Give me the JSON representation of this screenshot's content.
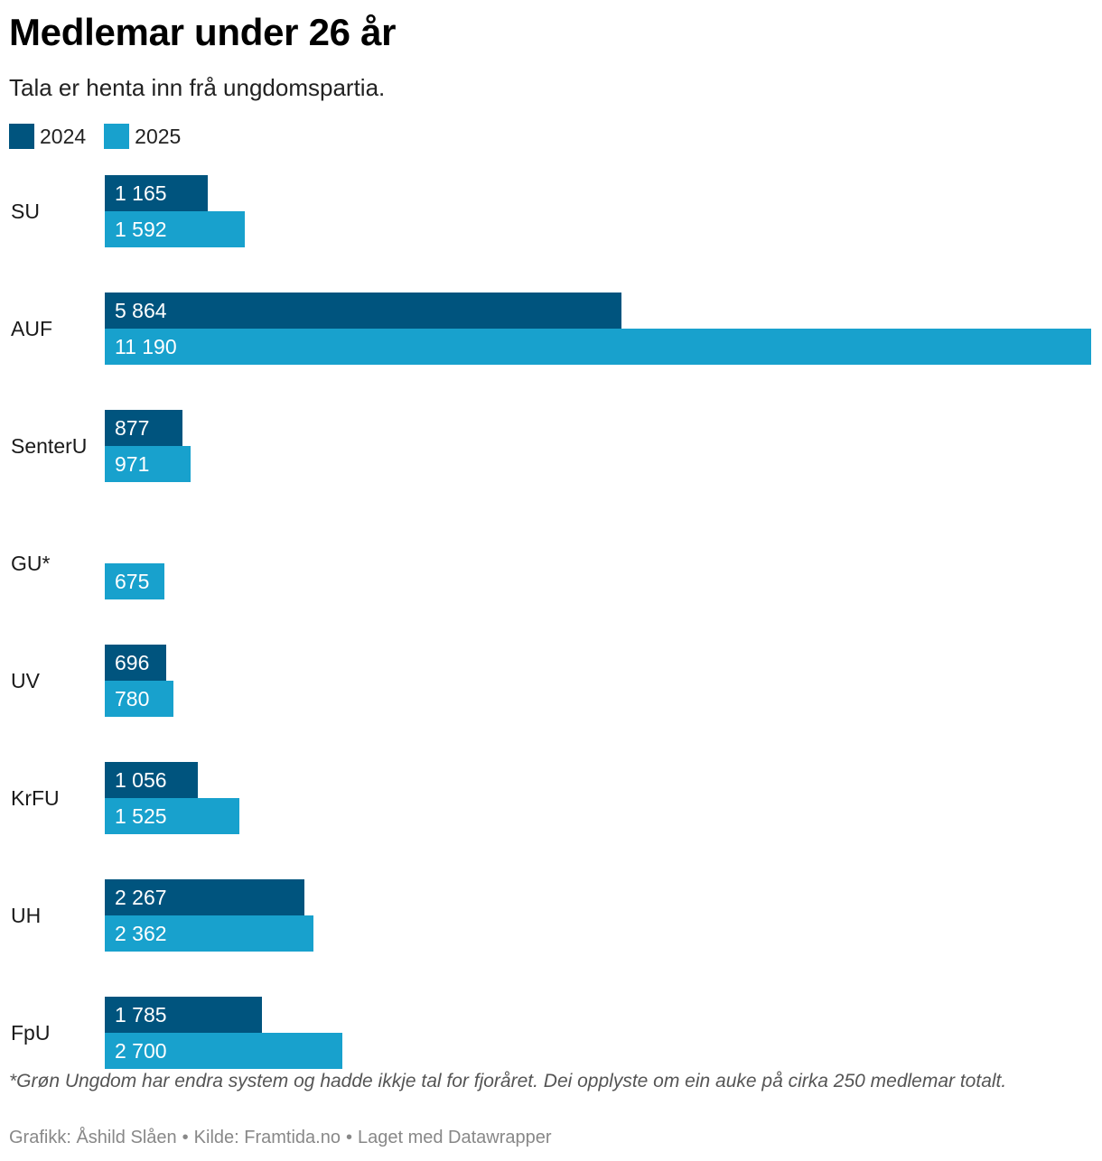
{
  "header": {
    "title": "Medlemar under 26 år",
    "subtitle": "Tala er henta inn frå ungdomspartia."
  },
  "legend": [
    {
      "label": "2024",
      "color": "#00547e"
    },
    {
      "label": "2025",
      "color": "#18a1cd"
    }
  ],
  "chart_data": {
    "type": "bar",
    "orientation": "horizontal",
    "categories": [
      "SU",
      "AUF",
      "SenterU",
      "GU*",
      "UV",
      "KrFU",
      "UH",
      "FpU"
    ],
    "series": [
      {
        "name": "2024",
        "color": "#00547e",
        "values": [
          1165,
          5864,
          877,
          null,
          696,
          1056,
          2267,
          1785
        ],
        "labels": [
          "1 165",
          "5 864",
          "877",
          "",
          "696",
          "1 056",
          "2 267",
          "1 785"
        ]
      },
      {
        "name": "2025",
        "color": "#18a1cd",
        "values": [
          1592,
          11190,
          971,
          675,
          780,
          1525,
          2362,
          2700
        ],
        "labels": [
          "1 592",
          "11 190",
          "971",
          "675",
          "780",
          "1 525",
          "2 362",
          "2 700"
        ]
      }
    ],
    "xlim": [
      0,
      11190
    ],
    "grid": false,
    "legend_position": "top-left"
  },
  "footer": {
    "note": "*Grøn Ungdom har endra system og hadde ikkje tal for fjoråret. Dei opplyste om ein auke på cirka 250 medlemar totalt.",
    "credits": {
      "author": "Grafikk: Åshild Slåen",
      "source": "Kilde: Framtida.no",
      "tool": "Laget med Datawrapper",
      "separator": "•"
    }
  }
}
